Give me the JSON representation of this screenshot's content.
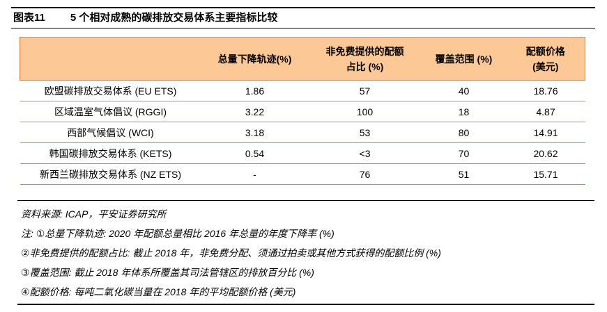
{
  "title": {
    "tag": "图表11",
    "text": "5 个相对成熟的碳排放交易体系主要指标比较"
  },
  "table": {
    "columns": [
      {
        "label": ""
      },
      {
        "label": "总量下降轨迹(%)"
      },
      {
        "label": "非免费提供的配额占比 (%)",
        "line1": "非免费提供的配额",
        "line2": "占比 (%)"
      },
      {
        "label": "覆盖范围 (%)"
      },
      {
        "label": "配额价格(美元)",
        "line1": "配额价格",
        "line2": "(美元)"
      }
    ],
    "rows": [
      {
        "name": "欧盟碳排放交易体系 (EU ETS)",
        "values": [
          "1.86",
          "57",
          "40",
          "18.76"
        ]
      },
      {
        "name": "区域温室气体倡议 (RGGI)",
        "values": [
          "3.22",
          "100",
          "18",
          "4.87"
        ]
      },
      {
        "name": "西部气候倡议 (WCI)",
        "values": [
          "3.18",
          "53",
          "80",
          "14.91"
        ]
      },
      {
        "name": "韩国碳排放交易体系 (KETS)",
        "values": [
          "0.54",
          "<3",
          "70",
          "20.62"
        ]
      },
      {
        "name": "新西兰碳排放交易体系 (NZ ETS)",
        "values": [
          "-",
          "76",
          "51",
          "15.71"
        ]
      }
    ]
  },
  "footer": {
    "source": "资料来源: ICAP，平安证券研究所",
    "notes": [
      "注: ①总量下降轨迹: 2020 年配额总量相比 2016 年总量的年度下降率 (%)",
      "②非免费提供的配额占比: 截止 2018 年，非免费分配、须通过拍卖或其他方式获得的配额比例 (%)",
      "③覆盖范围: 截止 2018 年体系所覆盖其司法管辖区的排放百分比 (%)",
      "④配额价格: 每吨二氧化碳当量在 2018 年的平均配额价格 (美元)"
    ]
  },
  "colors": {
    "header_bg": "#FCC896",
    "table_rule": "#ED7D31",
    "black_rule": "#000000",
    "text": "#000000"
  }
}
